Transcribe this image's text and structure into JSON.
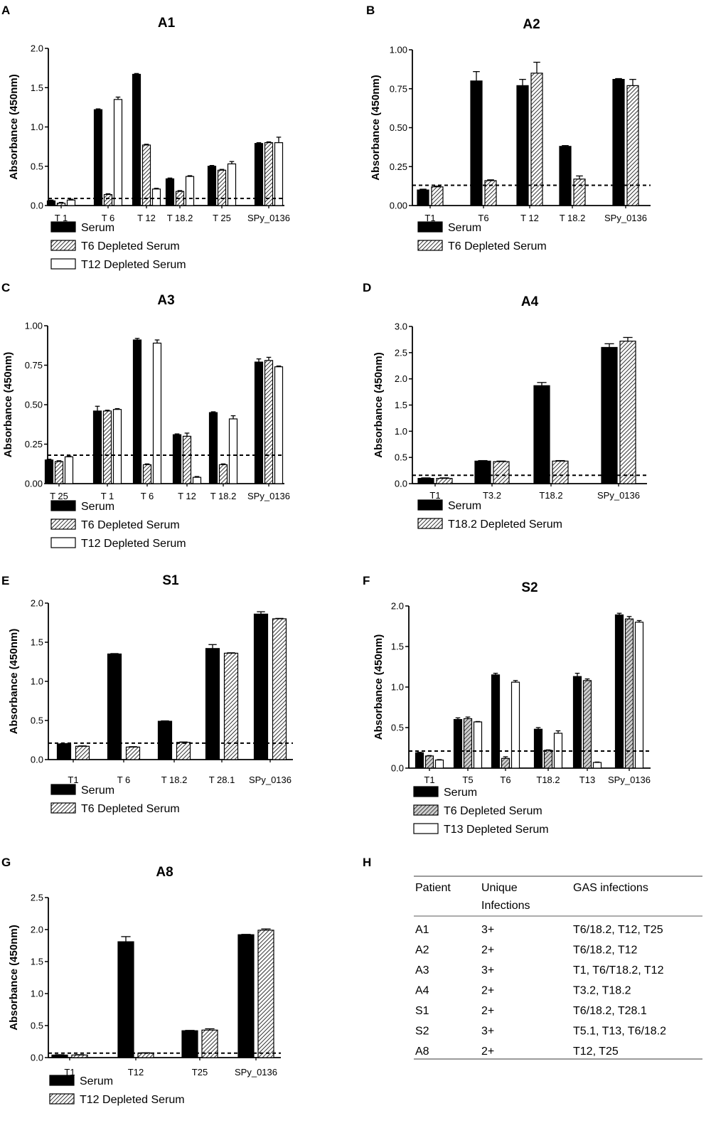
{
  "figure_labels": {
    "A": "A",
    "B": "B",
    "C": "C",
    "D": "D",
    "E": "E",
    "F": "F",
    "G": "G",
    "H": "H"
  },
  "colors": {
    "serum": "#000000",
    "hatched_fill": "#ffffff",
    "open_fill": "#ffffff",
    "stroke": "#000000"
  },
  "chart_data": [
    {
      "id": "A1",
      "type": "bar",
      "title": "A1",
      "xlabel": "",
      "ylabel": "Absorbance (450nm)",
      "ylim": [
        0,
        2.0
      ],
      "yticks": [
        "0.0",
        "0.5",
        "1.0",
        "1.5",
        "2.0"
      ],
      "ytick_values": [
        0,
        0.5,
        1.0,
        1.5,
        2.0
      ],
      "threshold": 0.09,
      "categories": [
        "T 1",
        "T 6",
        "T 12",
        "T 18.2",
        "T 25",
        "SPy_0136"
      ],
      "series": [
        {
          "name": "Serum",
          "style": "solid",
          "values": [
            0.06,
            1.22,
            1.67,
            0.34,
            0.5,
            0.79
          ],
          "errors": [
            0.01,
            0.01,
            0.01,
            0.01,
            0.01,
            0.01
          ]
        },
        {
          "name": "T6 Depleted Serum",
          "style": "hatched",
          "values": [
            0.03,
            0.14,
            0.77,
            0.18,
            0.45,
            0.8
          ],
          "errors": [
            0.01,
            0.01,
            0.01,
            0.01,
            0.01,
            0.01
          ]
        },
        {
          "name": "T12 Depleted Serum",
          "style": "open",
          "values": [
            0.07,
            1.35,
            0.21,
            0.37,
            0.53,
            0.8
          ],
          "errors": [
            0.01,
            0.03,
            0.01,
            0.01,
            0.03,
            0.07
          ]
        }
      ]
    },
    {
      "id": "A2",
      "type": "bar",
      "title": "A2",
      "xlabel": "",
      "ylabel": "Absorbance (450nm)",
      "ylim": [
        0,
        1.0
      ],
      "yticks": [
        "0.00",
        "0.25",
        "0.50",
        "0.75",
        "1.00"
      ],
      "ytick_values": [
        0,
        0.25,
        0.5,
        0.75,
        1.0
      ],
      "threshold": 0.13,
      "categories": [
        "T1",
        "T6",
        "T 12",
        "T 18.2",
        "SPy_0136"
      ],
      "series": [
        {
          "name": "Serum",
          "style": "solid",
          "values": [
            0.1,
            0.8,
            0.77,
            0.38,
            0.81
          ],
          "errors": [
            0.005,
            0.06,
            0.04,
            0.005,
            0.005
          ]
        },
        {
          "name": "T6 Depleted Serum",
          "style": "hatched",
          "values": [
            0.12,
            0.16,
            0.85,
            0.17,
            0.77
          ],
          "errors": [
            0.005,
            0.005,
            0.07,
            0.02,
            0.04
          ]
        }
      ]
    },
    {
      "id": "A3",
      "type": "bar",
      "title": "A3",
      "xlabel": "",
      "ylabel": "Absorbance (450nm)",
      "ylim": [
        0,
        1.0
      ],
      "yticks": [
        "0.00",
        "0.25",
        "0.50",
        "0.75",
        "1.00"
      ],
      "ytick_values": [
        0,
        0.25,
        0.5,
        0.75,
        1.0
      ],
      "threshold": 0.18,
      "categories": [
        "T 25",
        "T 1",
        "T 6",
        "T 12",
        "T 18.2",
        "SPy_0136"
      ],
      "series": [
        {
          "name": "Serum",
          "style": "solid",
          "values": [
            0.15,
            0.46,
            0.91,
            0.31,
            0.45,
            0.77
          ],
          "errors": [
            0.005,
            0.03,
            0.01,
            0.005,
            0.005,
            0.02
          ]
        },
        {
          "name": "T6 Depleted Serum",
          "style": "hatched",
          "values": [
            0.14,
            0.46,
            0.12,
            0.3,
            0.12,
            0.78
          ],
          "errors": [
            0.005,
            0.005,
            0.005,
            0.02,
            0.005,
            0.02
          ]
        },
        {
          "name": "T12 Depleted Serum",
          "style": "open",
          "values": [
            0.17,
            0.47,
            0.89,
            0.04,
            0.41,
            0.74
          ],
          "errors": [
            0.005,
            0.005,
            0.02,
            0.005,
            0.02,
            0.005
          ]
        }
      ]
    },
    {
      "id": "A4",
      "type": "bar",
      "title": "A4",
      "xlabel": "",
      "ylabel": "Absorbance (450nm)",
      "ylim": [
        0,
        3.0
      ],
      "yticks": [
        "0.0",
        "0.5",
        "1.0",
        "1.5",
        "2.0",
        "2.5",
        "3.0"
      ],
      "ytick_values": [
        0,
        0.5,
        1.0,
        1.5,
        2.0,
        2.5,
        3.0
      ],
      "threshold": 0.16,
      "categories": [
        "T1",
        "T3.2",
        "T18.2",
        "SPy_0136"
      ],
      "series": [
        {
          "name": "Serum",
          "style": "solid",
          "values": [
            0.1,
            0.43,
            1.87,
            2.6
          ],
          "errors": [
            0.01,
            0.01,
            0.06,
            0.07
          ]
        },
        {
          "name": "T18.2 Depleted Serum",
          "style": "hatched",
          "values": [
            0.1,
            0.42,
            0.43,
            2.72
          ],
          "errors": [
            0.01,
            0.01,
            0.01,
            0.07
          ]
        }
      ]
    },
    {
      "id": "S1",
      "type": "bar",
      "title": "S1",
      "xlabel": "",
      "ylabel": "Absorbance (450nm)",
      "ylim": [
        0,
        2.0
      ],
      "yticks": [
        "0.0",
        "0.5",
        "1.0",
        "1.5",
        "2.0"
      ],
      "ytick_values": [
        0,
        0.5,
        1.0,
        1.5,
        2.0
      ],
      "threshold": 0.21,
      "categories": [
        "T1",
        "T 6",
        "T 18.2",
        "T 28.1",
        "SPy_0136"
      ],
      "series": [
        {
          "name": "Serum",
          "style": "solid",
          "values": [
            0.2,
            1.35,
            0.49,
            1.42,
            1.86
          ],
          "errors": [
            0.005,
            0.005,
            0.005,
            0.05,
            0.03
          ]
        },
        {
          "name": "T6 Depleted Serum",
          "style": "hatched",
          "values": [
            0.17,
            0.16,
            0.22,
            1.36,
            1.8
          ],
          "errors": [
            0.005,
            0.005,
            0.005,
            0.005,
            0.005
          ]
        }
      ]
    },
    {
      "id": "S2",
      "type": "bar",
      "title": "S2",
      "xlabel": "",
      "ylabel": "Absorbance (450nm)",
      "ylim": [
        0,
        2.0
      ],
      "yticks": [
        "0.0",
        "0.5",
        "1.0",
        "1.5",
        "2.0"
      ],
      "ytick_values": [
        0,
        0.5,
        1.0,
        1.5,
        2.0
      ],
      "threshold": 0.21,
      "categories": [
        "T1",
        "T5",
        "T6",
        "T18.2",
        "T13",
        "SPy_0136"
      ],
      "series": [
        {
          "name": "Serum",
          "style": "solid",
          "values": [
            0.19,
            0.6,
            1.15,
            0.48,
            1.13,
            1.89
          ],
          "errors": [
            0.005,
            0.02,
            0.02,
            0.02,
            0.04,
            0.02
          ]
        },
        {
          "name": "T6 Depleted Serum",
          "style": "hatched-gray",
          "values": [
            0.15,
            0.61,
            0.12,
            0.22,
            1.08,
            1.84
          ],
          "errors": [
            0.005,
            0.02,
            0.02,
            0.005,
            0.02,
            0.03
          ]
        },
        {
          "name": "T13 Depleted Serum",
          "style": "open",
          "values": [
            0.1,
            0.57,
            1.06,
            0.43,
            0.07,
            1.8
          ],
          "errors": [
            0.005,
            0.005,
            0.02,
            0.03,
            0.005,
            0.02
          ]
        }
      ]
    },
    {
      "id": "A8",
      "type": "bar",
      "title": "A8",
      "xlabel": "",
      "ylabel": "Absorbance (450nm)",
      "ylim": [
        0,
        2.5
      ],
      "yticks": [
        "0.0",
        "0.5",
        "1.0",
        "1.5",
        "2.0",
        "2.5"
      ],
      "ytick_values": [
        0,
        0.5,
        1.0,
        1.5,
        2.0,
        2.5
      ],
      "threshold": 0.07,
      "categories": [
        "T1",
        "T12",
        "T25",
        "SPy_0136"
      ],
      "series": [
        {
          "name": "Serum",
          "style": "solid",
          "values": [
            0.04,
            1.81,
            0.42,
            1.92
          ],
          "errors": [
            0.005,
            0.08,
            0.005,
            0.005
          ]
        },
        {
          "name": "T12 Depleted Serum",
          "style": "hatched",
          "values": [
            0.04,
            0.07,
            0.43,
            1.99
          ],
          "errors": [
            0.005,
            0.005,
            0.02,
            0.02
          ]
        }
      ]
    }
  ],
  "table": {
    "headers": [
      "Patient",
      "Unique",
      "GAS infections"
    ],
    "header_second_line": "Infections",
    "rows": [
      [
        "A1",
        "3+",
        "T6/18.2, T12, T25"
      ],
      [
        "A2",
        "2+",
        "T6/18.2, T12"
      ],
      [
        "A3",
        "3+",
        "T1, T6/T18.2, T12"
      ],
      [
        "A4",
        "2+",
        "T3.2, T18.2"
      ],
      [
        "S1",
        "2+",
        "T6/18.2, T28.1"
      ],
      [
        "S2",
        "3+",
        "T5.1, T13, T6/18.2"
      ],
      [
        "A8",
        "2+",
        "T12, T25"
      ]
    ]
  }
}
